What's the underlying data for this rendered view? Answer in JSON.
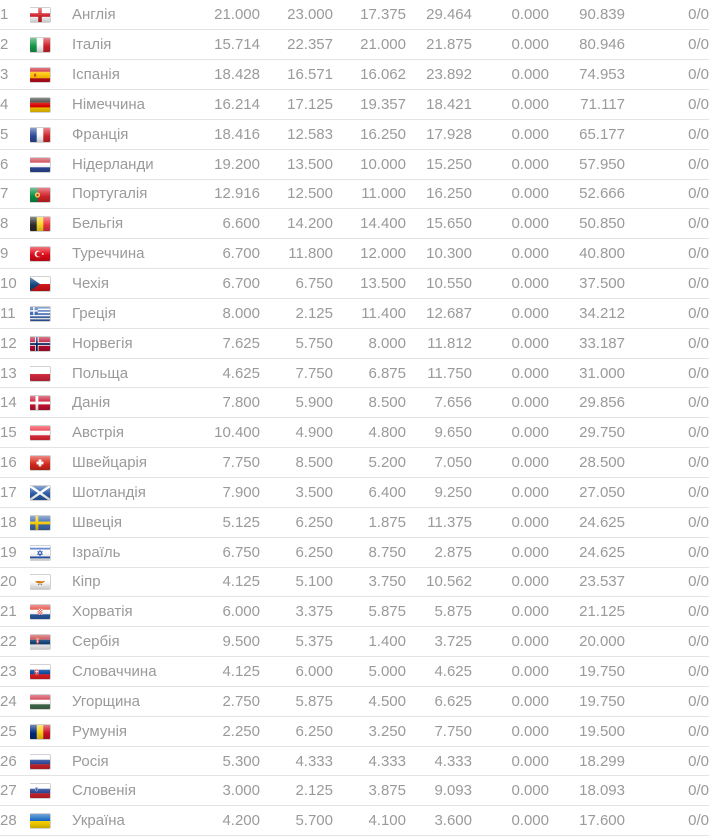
{
  "colors": {
    "text": "#9a9a9a",
    "row_border": "#e3e3e3",
    "background": "#ffffff"
  },
  "table": {
    "description": "uefa-country-coefficients-ranking",
    "rows": [
      {
        "rank": "1",
        "flag": "england",
        "country": "Англія",
        "c1": "21.000",
        "c2": "23.000",
        "c3": "17.375",
        "c4": "29.464",
        "c5": "0.000",
        "total": "90.839",
        "ratio": "0/0"
      },
      {
        "rank": "2",
        "flag": "italy",
        "country": "Італія",
        "c1": "15.714",
        "c2": "22.357",
        "c3": "21.000",
        "c4": "21.875",
        "c5": "0.000",
        "total": "80.946",
        "ratio": "0/0"
      },
      {
        "rank": "3",
        "flag": "spain",
        "country": "Іспанія",
        "c1": "18.428",
        "c2": "16.571",
        "c3": "16.062",
        "c4": "23.892",
        "c5": "0.000",
        "total": "74.953",
        "ratio": "0/0"
      },
      {
        "rank": "4",
        "flag": "germany",
        "country": "Німеччина",
        "c1": "16.214",
        "c2": "17.125",
        "c3": "19.357",
        "c4": "18.421",
        "c5": "0.000",
        "total": "71.117",
        "ratio": "0/0"
      },
      {
        "rank": "5",
        "flag": "france",
        "country": "Франція",
        "c1": "18.416",
        "c2": "12.583",
        "c3": "16.250",
        "c4": "17.928",
        "c5": "0.000",
        "total": "65.177",
        "ratio": "0/0"
      },
      {
        "rank": "6",
        "flag": "netherlands",
        "country": "Нідерланди",
        "c1": "19.200",
        "c2": "13.500",
        "c3": "10.000",
        "c4": "15.250",
        "c5": "0.000",
        "total": "57.950",
        "ratio": "0/0"
      },
      {
        "rank": "7",
        "flag": "portugal",
        "country": "Португалія",
        "c1": "12.916",
        "c2": "12.500",
        "c3": "11.000",
        "c4": "16.250",
        "c5": "0.000",
        "total": "52.666",
        "ratio": "0/0"
      },
      {
        "rank": "8",
        "flag": "belgium",
        "country": "Бельгія",
        "c1": "6.600",
        "c2": "14.200",
        "c3": "14.400",
        "c4": "15.650",
        "c5": "0.000",
        "total": "50.850",
        "ratio": "0/0"
      },
      {
        "rank": "9",
        "flag": "turkey",
        "country": "Туреччина",
        "c1": "6.700",
        "c2": "11.800",
        "c3": "12.000",
        "c4": "10.300",
        "c5": "0.000",
        "total": "40.800",
        "ratio": "0/0"
      },
      {
        "rank": "10",
        "flag": "czechia",
        "country": "Чехія",
        "c1": "6.700",
        "c2": "6.750",
        "c3": "13.500",
        "c4": "10.550",
        "c5": "0.000",
        "total": "37.500",
        "ratio": "0/0"
      },
      {
        "rank": "11",
        "flag": "greece",
        "country": "Греція",
        "c1": "8.000",
        "c2": "2.125",
        "c3": "11.400",
        "c4": "12.687",
        "c5": "0.000",
        "total": "34.212",
        "ratio": "0/0"
      },
      {
        "rank": "12",
        "flag": "norway",
        "country": "Норвегія",
        "c1": "7.625",
        "c2": "5.750",
        "c3": "8.000",
        "c4": "11.812",
        "c5": "0.000",
        "total": "33.187",
        "ratio": "0/0"
      },
      {
        "rank": "13",
        "flag": "poland",
        "country": "Польща",
        "c1": "4.625",
        "c2": "7.750",
        "c3": "6.875",
        "c4": "11.750",
        "c5": "0.000",
        "total": "31.000",
        "ratio": "0/0"
      },
      {
        "rank": "14",
        "flag": "denmark",
        "country": "Данія",
        "c1": "7.800",
        "c2": "5.900",
        "c3": "8.500",
        "c4": "7.656",
        "c5": "0.000",
        "total": "29.856",
        "ratio": "0/0"
      },
      {
        "rank": "15",
        "flag": "austria",
        "country": "Австрія",
        "c1": "10.400",
        "c2": "4.900",
        "c3": "4.800",
        "c4": "9.650",
        "c5": "0.000",
        "total": "29.750",
        "ratio": "0/0"
      },
      {
        "rank": "16",
        "flag": "switzerland",
        "country": "Швейцарія",
        "c1": "7.750",
        "c2": "8.500",
        "c3": "5.200",
        "c4": "7.050",
        "c5": "0.000",
        "total": "28.500",
        "ratio": "0/0"
      },
      {
        "rank": "17",
        "flag": "scotland",
        "country": "Шотландія",
        "c1": "7.900",
        "c2": "3.500",
        "c3": "6.400",
        "c4": "9.250",
        "c5": "0.000",
        "total": "27.050",
        "ratio": "0/0"
      },
      {
        "rank": "18",
        "flag": "sweden",
        "country": "Швеція",
        "c1": "5.125",
        "c2": "6.250",
        "c3": "1.875",
        "c4": "11.375",
        "c5": "0.000",
        "total": "24.625",
        "ratio": "0/0"
      },
      {
        "rank": "19",
        "flag": "israel",
        "country": "Ізраїль",
        "c1": "6.750",
        "c2": "6.250",
        "c3": "8.750",
        "c4": "2.875",
        "c5": "0.000",
        "total": "24.625",
        "ratio": "0/0"
      },
      {
        "rank": "20",
        "flag": "cyprus",
        "country": "Кіпр",
        "c1": "4.125",
        "c2": "5.100",
        "c3": "3.750",
        "c4": "10.562",
        "c5": "0.000",
        "total": "23.537",
        "ratio": "0/0"
      },
      {
        "rank": "21",
        "flag": "croatia",
        "country": "Хорватія",
        "c1": "6.000",
        "c2": "3.375",
        "c3": "5.875",
        "c4": "5.875",
        "c5": "0.000",
        "total": "21.125",
        "ratio": "0/0"
      },
      {
        "rank": "22",
        "flag": "serbia",
        "country": "Сербія",
        "c1": "9.500",
        "c2": "5.375",
        "c3": "1.400",
        "c4": "3.725",
        "c5": "0.000",
        "total": "20.000",
        "ratio": "0/0"
      },
      {
        "rank": "23",
        "flag": "slovakia",
        "country": "Словаччина",
        "c1": "4.125",
        "c2": "6.000",
        "c3": "5.000",
        "c4": "4.625",
        "c5": "0.000",
        "total": "19.750",
        "ratio": "0/0"
      },
      {
        "rank": "24",
        "flag": "hungary",
        "country": "Угорщина",
        "c1": "2.750",
        "c2": "5.875",
        "c3": "4.500",
        "c4": "6.625",
        "c5": "0.000",
        "total": "19.750",
        "ratio": "0/0"
      },
      {
        "rank": "25",
        "flag": "romania",
        "country": "Румунія",
        "c1": "2.250",
        "c2": "6.250",
        "c3": "3.250",
        "c4": "7.750",
        "c5": "0.000",
        "total": "19.500",
        "ratio": "0/0"
      },
      {
        "rank": "26",
        "flag": "russia",
        "country": "Росія",
        "c1": "5.300",
        "c2": "4.333",
        "c3": "4.333",
        "c4": "4.333",
        "c5": "0.000",
        "total": "18.299",
        "ratio": "0/0"
      },
      {
        "rank": "27",
        "flag": "slovenia",
        "country": "Словенія",
        "c1": "3.000",
        "c2": "2.125",
        "c3": "3.875",
        "c4": "9.093",
        "c5": "0.000",
        "total": "18.093",
        "ratio": "0/0"
      },
      {
        "rank": "28",
        "flag": "ukraine",
        "country": "Україна",
        "c1": "4.200",
        "c2": "5.700",
        "c3": "4.100",
        "c4": "3.600",
        "c5": "0.000",
        "total": "17.600",
        "ratio": "0/0"
      }
    ]
  }
}
